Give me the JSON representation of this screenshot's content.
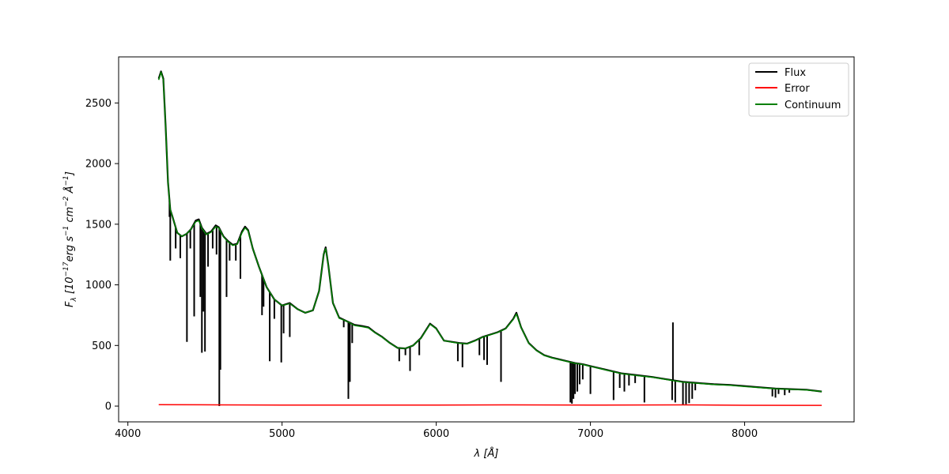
{
  "chart_data": {
    "type": "line",
    "title": "",
    "xlabel_parts": [
      "λ [",
      "Å",
      "]"
    ],
    "ylabel_parts": [
      "F",
      "λ",
      " [10",
      "−17",
      "erg s",
      "−1",
      " cm",
      "−2",
      " ",
      "Å",
      "−1",
      "]"
    ],
    "xlim": [
      3940,
      8710
    ],
    "ylim": [
      -130,
      2880
    ],
    "x_ticks": [
      4000,
      5000,
      6000,
      7000,
      8000
    ],
    "x_tick_labels": [
      "4000",
      "5000",
      "6000",
      "7000",
      "8000"
    ],
    "y_ticks": [
      0,
      500,
      1000,
      1500,
      2000,
      2500
    ],
    "y_tick_labels": [
      "0",
      "500",
      "1000",
      "1500",
      "2000",
      "2500"
    ],
    "grid": false,
    "legend": {
      "placement": "top-right",
      "entries": [
        {
          "label": "Flux",
          "color": "#000000"
        },
        {
          "label": "Error",
          "color": "#ff0000"
        },
        {
          "label": "Continuum",
          "color": "#008000"
        }
      ]
    },
    "series": [
      {
        "name": "Flux",
        "color": "#000000",
        "points": [
          [
            4200,
            2700
          ],
          [
            4215,
            2760
          ],
          [
            4230,
            2700
          ],
          [
            4245,
            2300
          ],
          [
            4260,
            1850
          ],
          [
            4275,
            1620
          ],
          [
            4290,
            1560
          ],
          [
            4320,
            1430
          ],
          [
            4350,
            1400
          ],
          [
            4380,
            1420
          ],
          [
            4410,
            1460
          ],
          [
            4440,
            1530
          ],
          [
            4460,
            1540
          ],
          [
            4480,
            1470
          ],
          [
            4510,
            1420
          ],
          [
            4540,
            1440
          ],
          [
            4570,
            1490
          ],
          [
            4590,
            1475
          ],
          [
            4620,
            1400
          ],
          [
            4650,
            1360
          ],
          [
            4680,
            1330
          ],
          [
            4710,
            1340
          ],
          [
            4740,
            1440
          ],
          [
            4760,
            1480
          ],
          [
            4780,
            1450
          ],
          [
            4810,
            1300
          ],
          [
            4850,
            1150
          ],
          [
            4900,
            980
          ],
          [
            4950,
            880
          ],
          [
            5000,
            830
          ],
          [
            5050,
            850
          ],
          [
            5100,
            800
          ],
          [
            5150,
            770
          ],
          [
            5200,
            790
          ],
          [
            5240,
            950
          ],
          [
            5270,
            1250
          ],
          [
            5283,
            1310
          ],
          [
            5300,
            1160
          ],
          [
            5330,
            850
          ],
          [
            5370,
            730
          ],
          [
            5420,
            700
          ],
          [
            5470,
            670
          ],
          [
            5520,
            660
          ],
          [
            5560,
            650
          ],
          [
            5600,
            610
          ],
          [
            5650,
            570
          ],
          [
            5700,
            520
          ],
          [
            5750,
            480
          ],
          [
            5800,
            475
          ],
          [
            5850,
            500
          ],
          [
            5900,
            560
          ],
          [
            5960,
            680
          ],
          [
            6000,
            640
          ],
          [
            6050,
            540
          ],
          [
            6100,
            530
          ],
          [
            6150,
            520
          ],
          [
            6200,
            515
          ],
          [
            6250,
            540
          ],
          [
            6300,
            570
          ],
          [
            6350,
            590
          ],
          [
            6400,
            610
          ],
          [
            6450,
            640
          ],
          [
            6500,
            720
          ],
          [
            6520,
            770
          ],
          [
            6550,
            650
          ],
          [
            6600,
            520
          ],
          [
            6650,
            460
          ],
          [
            6700,
            420
          ],
          [
            6750,
            400
          ],
          [
            6800,
            385
          ],
          [
            6850,
            370
          ],
          [
            6900,
            355
          ],
          [
            6950,
            345
          ],
          [
            7000,
            330
          ],
          [
            7100,
            300
          ],
          [
            7200,
            270
          ],
          [
            7300,
            255
          ],
          [
            7400,
            240
          ],
          [
            7500,
            220
          ],
          [
            7600,
            200
          ],
          [
            7700,
            190
          ],
          [
            7800,
            180
          ],
          [
            7900,
            175
          ],
          [
            8000,
            165
          ],
          [
            8100,
            155
          ],
          [
            8200,
            145
          ],
          [
            8300,
            140
          ],
          [
            8400,
            135
          ],
          [
            8500,
            120
          ]
        ]
      },
      {
        "name": "Error",
        "color": "#ff0000",
        "points": [
          [
            4200,
            12
          ],
          [
            4600,
            10
          ],
          [
            5000,
            9
          ],
          [
            5500,
            9
          ],
          [
            6000,
            9
          ],
          [
            6500,
            10
          ],
          [
            7000,
            8
          ],
          [
            7600,
            10
          ],
          [
            8000,
            7
          ],
          [
            8500,
            6
          ]
        ]
      },
      {
        "name": "Continuum",
        "color": "#008000",
        "points": [
          [
            4200,
            2690
          ],
          [
            4215,
            2755
          ],
          [
            4230,
            2690
          ],
          [
            4245,
            2300
          ],
          [
            4260,
            1850
          ],
          [
            4275,
            1620
          ],
          [
            4290,
            1560
          ],
          [
            4320,
            1430
          ],
          [
            4350,
            1400
          ],
          [
            4380,
            1420
          ],
          [
            4410,
            1460
          ],
          [
            4440,
            1520
          ],
          [
            4460,
            1530
          ],
          [
            4480,
            1465
          ],
          [
            4510,
            1415
          ],
          [
            4540,
            1435
          ],
          [
            4570,
            1480
          ],
          [
            4590,
            1470
          ],
          [
            4620,
            1395
          ],
          [
            4650,
            1355
          ],
          [
            4680,
            1325
          ],
          [
            4710,
            1335
          ],
          [
            4740,
            1430
          ],
          [
            4760,
            1470
          ],
          [
            4780,
            1445
          ],
          [
            4810,
            1300
          ],
          [
            4850,
            1150
          ],
          [
            4900,
            980
          ],
          [
            4950,
            880
          ],
          [
            5000,
            830
          ],
          [
            5050,
            845
          ],
          [
            5100,
            800
          ],
          [
            5150,
            770
          ],
          [
            5200,
            790
          ],
          [
            5240,
            950
          ],
          [
            5270,
            1250
          ],
          [
            5283,
            1300
          ],
          [
            5300,
            1160
          ],
          [
            5330,
            850
          ],
          [
            5370,
            725
          ],
          [
            5420,
            700
          ],
          [
            5470,
            665
          ],
          [
            5520,
            655
          ],
          [
            5560,
            645
          ],
          [
            5600,
            608
          ],
          [
            5650,
            568
          ],
          [
            5700,
            518
          ],
          [
            5750,
            480
          ],
          [
            5800,
            475
          ],
          [
            5850,
            500
          ],
          [
            5900,
            558
          ],
          [
            5960,
            675
          ],
          [
            6000,
            638
          ],
          [
            6050,
            540
          ],
          [
            6100,
            528
          ],
          [
            6150,
            518
          ],
          [
            6200,
            513
          ],
          [
            6250,
            538
          ],
          [
            6300,
            568
          ],
          [
            6350,
            588
          ],
          [
            6400,
            608
          ],
          [
            6450,
            638
          ],
          [
            6500,
            715
          ],
          [
            6520,
            760
          ],
          [
            6550,
            648
          ],
          [
            6600,
            518
          ],
          [
            6650,
            458
          ],
          [
            6700,
            418
          ],
          [
            6750,
            398
          ],
          [
            6800,
            383
          ],
          [
            6850,
            368
          ],
          [
            6900,
            353
          ],
          [
            6950,
            343
          ],
          [
            7000,
            328
          ],
          [
            7100,
            298
          ],
          [
            7200,
            268
          ],
          [
            7300,
            252
          ],
          [
            7400,
            238
          ],
          [
            7500,
            218
          ],
          [
            7600,
            198
          ],
          [
            7700,
            188
          ],
          [
            7800,
            178
          ],
          [
            7900,
            172
          ],
          [
            8000,
            162
          ],
          [
            8100,
            152
          ],
          [
            8200,
            143
          ],
          [
            8300,
            138
          ],
          [
            8400,
            133
          ],
          [
            8500,
            120
          ]
        ]
      }
    ],
    "absorption_lines": [
      {
        "x": 4270,
        "y": 1560
      },
      {
        "x": 4275,
        "y": 1200
      },
      {
        "x": 4310,
        "y": 1300
      },
      {
        "x": 4340,
        "y": 1220
      },
      {
        "x": 4383,
        "y": 530
      },
      {
        "x": 4405,
        "y": 1300
      },
      {
        "x": 4430,
        "y": 740
      },
      {
        "x": 4470,
        "y": 900
      },
      {
        "x": 4480,
        "y": 440
      },
      {
        "x": 4490,
        "y": 780
      },
      {
        "x": 4500,
        "y": 450
      },
      {
        "x": 4520,
        "y": 1150
      },
      {
        "x": 4550,
        "y": 1300
      },
      {
        "x": 4575,
        "y": 1250
      },
      {
        "x": 4593,
        "y": 0
      },
      {
        "x": 4600,
        "y": 300
      },
      {
        "x": 4640,
        "y": 900
      },
      {
        "x": 4660,
        "y": 1200
      },
      {
        "x": 4700,
        "y": 1200
      },
      {
        "x": 4730,
        "y": 1050
      },
      {
        "x": 4870,
        "y": 750
      },
      {
        "x": 4880,
        "y": 820
      },
      {
        "x": 4920,
        "y": 370
      },
      {
        "x": 4950,
        "y": 720
      },
      {
        "x": 4995,
        "y": 360
      },
      {
        "x": 5010,
        "y": 600
      },
      {
        "x": 5050,
        "y": 570
      },
      {
        "x": 5400,
        "y": 650
      },
      {
        "x": 5430,
        "y": 60
      },
      {
        "x": 5440,
        "y": 200
      },
      {
        "x": 5455,
        "y": 520
      },
      {
        "x": 5760,
        "y": 370
      },
      {
        "x": 5800,
        "y": 420
      },
      {
        "x": 5830,
        "y": 290
      },
      {
        "x": 5890,
        "y": 420
      },
      {
        "x": 6140,
        "y": 370
      },
      {
        "x": 6170,
        "y": 320
      },
      {
        "x": 6280,
        "y": 420
      },
      {
        "x": 6310,
        "y": 380
      },
      {
        "x": 6330,
        "y": 340
      },
      {
        "x": 6420,
        "y": 200
      },
      {
        "x": 6870,
        "y": 30
      },
      {
        "x": 6880,
        "y": 20
      },
      {
        "x": 6890,
        "y": 60
      },
      {
        "x": 6900,
        "y": 100
      },
      {
        "x": 6915,
        "y": 120
      },
      {
        "x": 6930,
        "y": 180
      },
      {
        "x": 6950,
        "y": 220
      },
      {
        "x": 7000,
        "y": 100
      },
      {
        "x": 7150,
        "y": 50
      },
      {
        "x": 7190,
        "y": 150
      },
      {
        "x": 7220,
        "y": 120
      },
      {
        "x": 7250,
        "y": 170
      },
      {
        "x": 7290,
        "y": 190
      },
      {
        "x": 7350,
        "y": 30
      },
      {
        "x": 7530,
        "y": 50
      },
      {
        "x": 7550,
        "y": 30
      },
      {
        "x": 7600,
        "y": 10
      },
      {
        "x": 7620,
        "y": 15
      },
      {
        "x": 7640,
        "y": 25
      },
      {
        "x": 7660,
        "y": 60
      },
      {
        "x": 7680,
        "y": 130
      },
      {
        "x": 8180,
        "y": 80
      },
      {
        "x": 8200,
        "y": 70
      },
      {
        "x": 8220,
        "y": 100
      },
      {
        "x": 8260,
        "y": 90
      },
      {
        "x": 8290,
        "y": 110
      }
    ],
    "emission_spike": {
      "x": 7535,
      "y": 690
    }
  }
}
